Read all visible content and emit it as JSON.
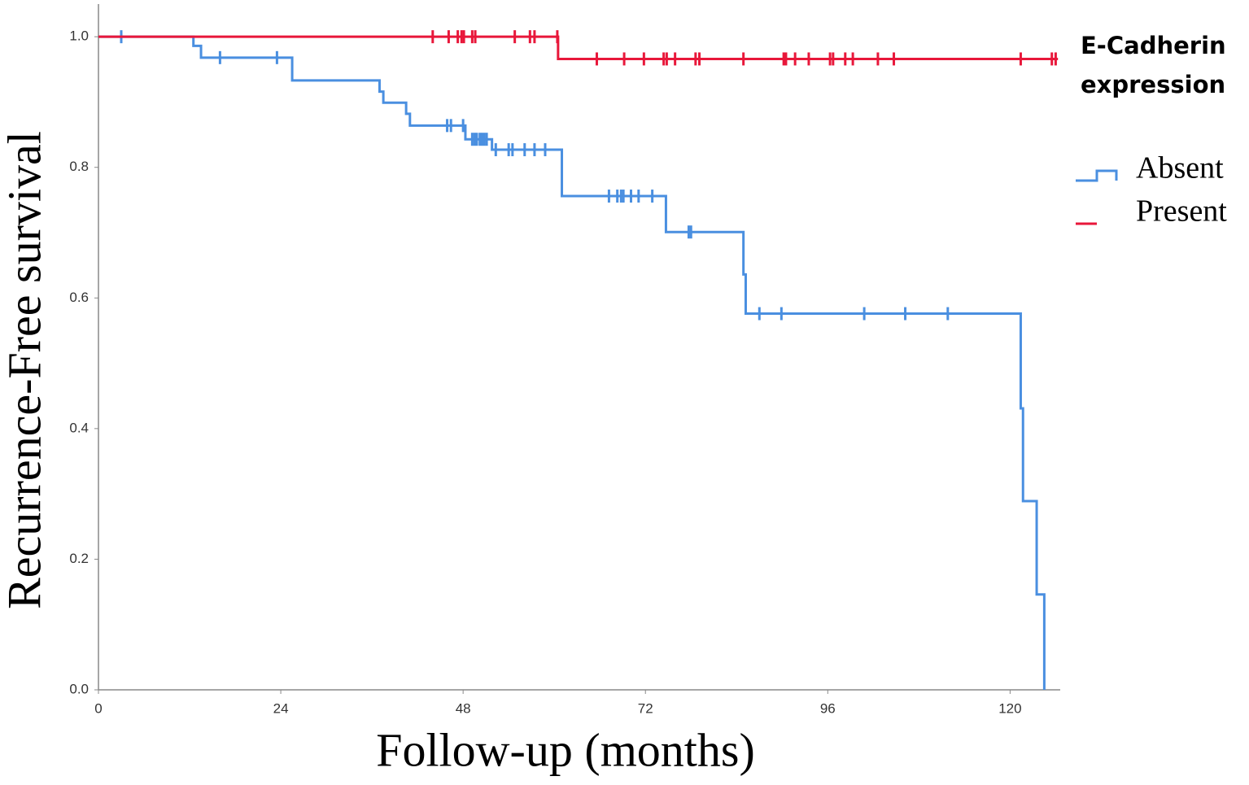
{
  "chart_data": {
    "type": "survival",
    "x_label": "Follow-up (months)",
    "y_label": "Recurrence-Free survival",
    "legend_title": "E-Cadherin expression",
    "legend_position": "right",
    "xlim": [
      0,
      126.6
    ],
    "xticks": [
      0,
      24,
      48,
      72,
      96,
      120
    ],
    "ylim": [
      0,
      1.05
    ],
    "yticks": [
      {
        "value": 0,
        "label": "0.0"
      },
      0.2,
      0.4,
      0.6,
      0.8,
      {
        "value": 1,
        "label": "1.0"
      }
    ],
    "series": [
      {
        "name": "Absent",
        "color": "#4a8fe0",
        "x": [
          0,
          12.5,
          13.5,
          25.5,
          37,
          37.5,
          40.5,
          41,
          48.3,
          51.8,
          61,
          74.7,
          84.9,
          85.2,
          121.4,
          121.7,
          123.5,
          124.5
        ],
        "values": [
          1,
          0.986,
          0.968,
          0.933,
          0.916,
          0.899,
          0.882,
          0.864,
          0.843,
          0.827,
          0.756,
          0.701,
          0.636,
          0.576,
          0.431,
          0.289,
          0.146,
          0
        ],
        "censor_x": [
          3,
          16,
          23.5,
          45.9,
          46.4,
          48,
          49.2,
          49.5,
          49.8,
          50.2,
          50.5,
          50.8,
          51.1,
          52.3,
          54,
          54.5,
          56.1,
          57.4,
          58.8,
          67.2,
          68.3,
          68.8,
          69.1,
          70.1,
          71.1,
          72.9,
          77.7,
          78,
          87,
          89.9,
          100.8,
          106.2,
          111.8
        ],
        "censor_values": [
          1,
          0.968,
          0.968,
          0.864,
          0.864,
          0.864,
          0.843,
          0.843,
          0.843,
          0.843,
          0.843,
          0.843,
          0.843,
          0.827,
          0.827,
          0.827,
          0.827,
          0.827,
          0.827,
          0.756,
          0.756,
          0.756,
          0.756,
          0.756,
          0.756,
          0.756,
          0.701,
          0.701,
          0.576,
          0.576,
          0.576,
          0.576,
          0.576
        ]
      },
      {
        "name": "Present",
        "color": "#e8173a",
        "x": [
          0,
          60.5,
          126.3
        ],
        "values": [
          1,
          0.966,
          0.966
        ],
        "censor_x": [
          44,
          46.1,
          47.3,
          47.8,
          48.1,
          49.2,
          49.6,
          54.8,
          56.8,
          57.4,
          60.4,
          65.6,
          69.2,
          71.8,
          74.4,
          74.8,
          75.9,
          78.6,
          79.1,
          84.9,
          90.2,
          90.5,
          91.7,
          93.5,
          96.3,
          96.7,
          98.3,
          99.3,
          102.6,
          104.7,
          121.4,
          125.5,
          126
        ],
        "censor_values": [
          1,
          1,
          1,
          1,
          1,
          1,
          1,
          1,
          1,
          1,
          1,
          0.966,
          0.966,
          0.966,
          0.966,
          0.966,
          0.966,
          0.966,
          0.966,
          0.966,
          0.966,
          0.966,
          0.966,
          0.966,
          0.966,
          0.966,
          0.966,
          0.966,
          0.966,
          0.966,
          0.966,
          0.966,
          0.966
        ]
      }
    ]
  }
}
